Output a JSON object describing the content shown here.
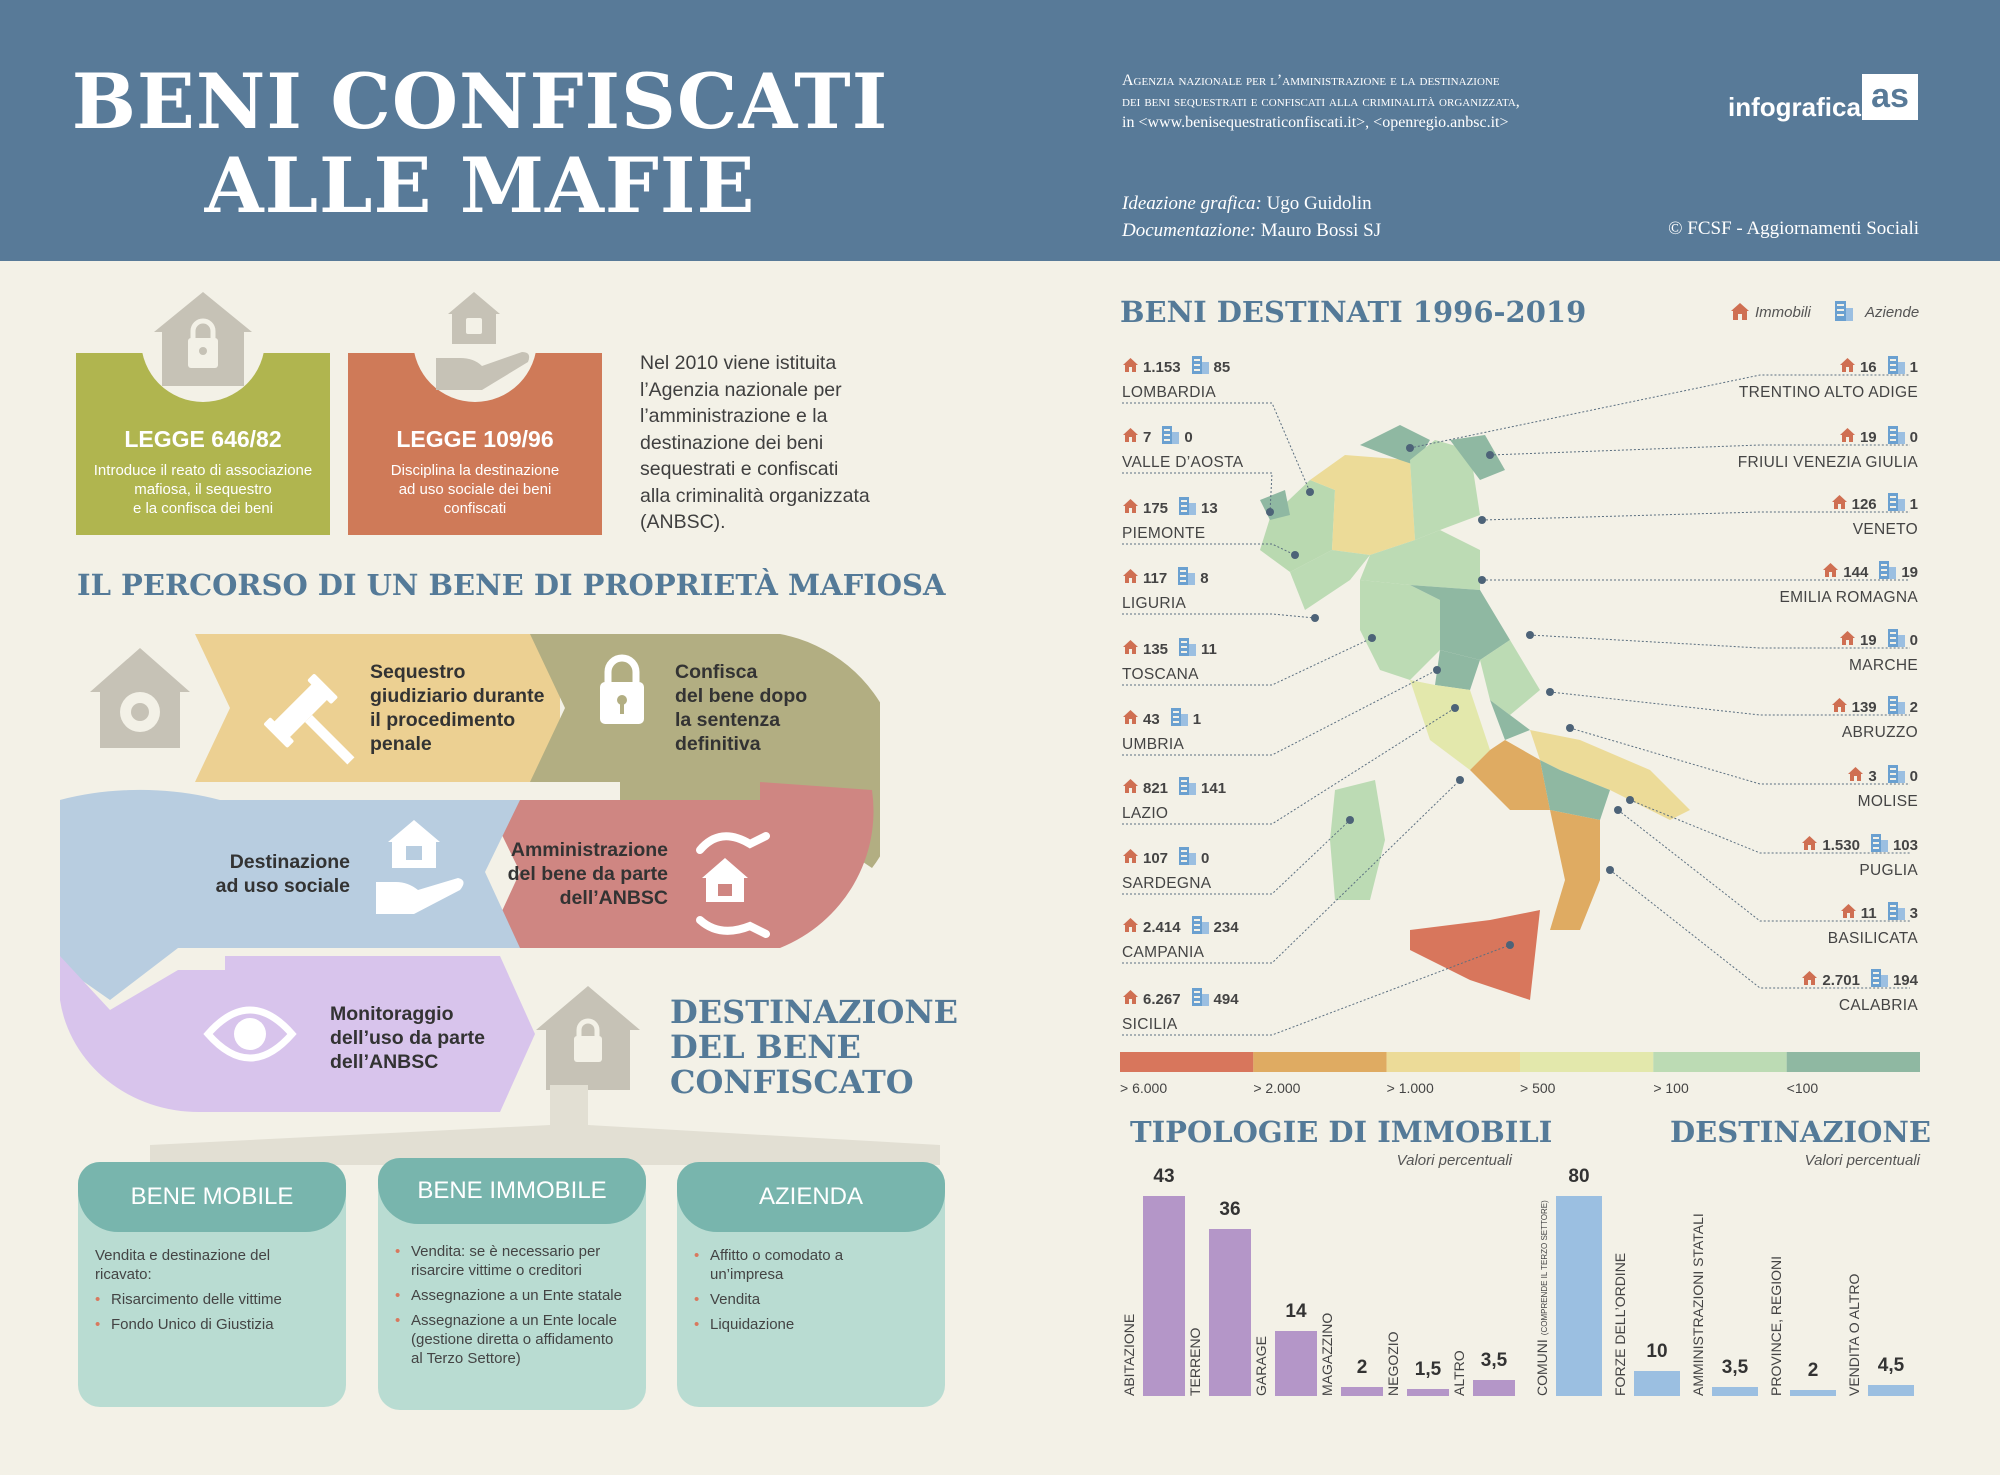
{
  "header": {
    "title_line1": "BENI CONFISCATI",
    "title_line2": "ALLE MAFIE",
    "source_line1": "Agenzia nazionale per l’amministrazione e la destinazione",
    "source_line2": "dei beni sequestrati e confiscati alla criminalità organizzata,",
    "source_line3": "in <www.benisequestraticonfiscati.it>, <openregio.anbsc.it>",
    "ideazione_label": "Ideazione grafica:",
    "ideazione_name": "Ugo Guidolin",
    "documentazione_label": "Documentazione:",
    "documentazione_name": "Mauro Bossi  SJ",
    "copyright": "© FCSF - Aggiornamenti Sociali",
    "brand": "infografica",
    "brand_mark": "as"
  },
  "laws": [
    {
      "title": "LEGGE 646/82",
      "desc": [
        "Introduce il reato di associazione",
        "mafiosa, il sequestro",
        "e la confisca dei beni"
      ],
      "color": "#b0b54f",
      "icon": "house-lock-icon"
    },
    {
      "title": "LEGGE 109/96",
      "desc": [
        "Disciplina la destinazione",
        "ad uso sociale dei beni",
        "confiscati"
      ],
      "color": "#cf7a58",
      "icon": "hand-house-icon"
    }
  ],
  "intro": [
    "Nel 2010 viene istituita",
    "l’Agenzia nazionale per",
    "l’amministrazione e la",
    "destinazione dei beni",
    "sequestrati e confiscati",
    "alla criminalità organizzata",
    "(ANBSC)."
  ],
  "percorso": {
    "title": "IL PERCORSO DI UN BENE DI PROPRIETÀ MAFIOSA",
    "steps": [
      {
        "text": [
          "Sequestro",
          "giudiziario durante",
          "il procedimento",
          "penale"
        ],
        "color": "#ecd092",
        "icon": "gavel-icon"
      },
      {
        "text": [
          "Confisca",
          "del bene dopo",
          "la sentenza",
          "definitiva"
        ],
        "color": "#b2ae82",
        "icon": "lock-icon"
      },
      {
        "text": [
          "Amministrazione",
          "del bene da parte",
          "dell’ANBSC"
        ],
        "color": "#cf8682",
        "icon": "hands-house-icon"
      },
      {
        "text": [
          "Destinazione",
          "ad uso sociale"
        ],
        "color": "#b8cde0",
        "icon": "hand-house-icon"
      },
      {
        "text": [
          "Monitoraggio",
          "dell’uso da parte",
          "dell’ANBSC"
        ],
        "color": "#d8c4ec",
        "icon": "eye-icon"
      }
    ]
  },
  "destinazione_bene": {
    "title": [
      "DESTINAZIONE",
      "DEL BENE",
      "CONFISCATO"
    ],
    "cards": [
      {
        "head": "BENE MOBILE",
        "intro": [
          "Vendita e destinazione del",
          "ricavato:"
        ],
        "items": [
          [
            "Risarcimento delle vittime"
          ],
          [
            "Fondo Unico di Giustizia"
          ]
        ]
      },
      {
        "head": "BENE IMMOBILE",
        "intro": [],
        "items": [
          [
            "Vendita: se è necessario per",
            "risarcire vittime o creditori"
          ],
          [
            "Assegnazione a un Ente statale"
          ],
          [
            "Assegnazione a un Ente locale",
            "(gestione diretta o affidamento",
            "al Terzo Settore)"
          ]
        ]
      },
      {
        "head": "AZIENDA",
        "intro": [],
        "items": [
          [
            "Affitto o comodato a",
            "un’impresa"
          ],
          [
            "Vendita"
          ],
          [
            "Liquidazione"
          ]
        ]
      }
    ]
  },
  "map": {
    "title": "BENI DESTINATI 1996-2019",
    "legend_immobili": "Immobili",
    "legend_aziende": "Aziende",
    "regions_left": [
      {
        "name": "LOMBARDIA",
        "immobili": "1.153",
        "aziende": "85"
      },
      {
        "name": "VALLE D’AOSTA",
        "immobili": "7",
        "aziende": "0"
      },
      {
        "name": "PIEMONTE",
        "immobili": "175",
        "aziende": "13"
      },
      {
        "name": "LIGURIA",
        "immobili": "117",
        "aziende": "8"
      },
      {
        "name": "TOSCANA",
        "immobili": "135",
        "aziende": "11"
      },
      {
        "name": "UMBRIA",
        "immobili": "43",
        "aziende": "1"
      },
      {
        "name": "LAZIO",
        "immobili": "821",
        "aziende": "141"
      },
      {
        "name": "SARDEGNA",
        "immobili": "107",
        "aziende": "0"
      },
      {
        "name": "CAMPANIA",
        "immobili": "2.414",
        "aziende": "234"
      },
      {
        "name": "SICILIA",
        "immobili": "6.267",
        "aziende": "494"
      }
    ],
    "regions_right": [
      {
        "name": "TRENTINO ALTO ADIGE",
        "immobili": "16",
        "aziende": "1"
      },
      {
        "name": "FRIULI VENEZIA GIULIA",
        "immobili": "19",
        "aziende": "0"
      },
      {
        "name": "VENETO",
        "immobili": "126",
        "aziende": "1"
      },
      {
        "name": "EMILIA ROMAGNA",
        "immobili": "144",
        "aziende": "19"
      },
      {
        "name": "MARCHE",
        "immobili": "19",
        "aziende": "0"
      },
      {
        "name": "ABRUZZO",
        "immobili": "139",
        "aziende": "2"
      },
      {
        "name": "MOLISE",
        "immobili": "3",
        "aziende": "0"
      },
      {
        "name": "PUGLIA",
        "immobili": "1.530",
        "aziende": "103"
      },
      {
        "name": "BASILICATA",
        "immobili": "11",
        "aziende": "3"
      },
      {
        "name": "CALABRIA",
        "immobili": "2.701",
        "aziende": "194"
      }
    ],
    "scale": [
      {
        "label": "> 6.000",
        "color": "#d8765c"
      },
      {
        "label": "> 2.000",
        "color": "#dfab62"
      },
      {
        "label": "> 1.000",
        "color": "#ecdb98"
      },
      {
        "label": "> 500",
        "color": "#e3e8ac"
      },
      {
        "label": "> 100",
        "color": "#bcdbb4"
      },
      {
        "label": "<100",
        "color": "#8fb8a2"
      }
    ]
  },
  "chart_data": [
    {
      "type": "bar",
      "title": "TIPOLOGIE DI IMMOBILI",
      "subtitle": "Valori percentuali",
      "categories": [
        "ABITAZIONE",
        "TERRENO",
        "GARAGE",
        "MAGAZZINO",
        "NEGOZIO",
        "ALTRO"
      ],
      "values": [
        43,
        36,
        14,
        2,
        1.5,
        3.5
      ],
      "value_labels": [
        "43",
        "36",
        "14",
        "2",
        "1,5",
        "3,5"
      ],
      "color": "#b496c8"
    },
    {
      "type": "bar",
      "title": "DESTINAZIONE",
      "subtitle": "Valori percentuali",
      "categories": [
        "COMUNI",
        "FORZE DELL’ORDINE",
        "AMMINISTRAZIONI STATALI",
        "PROVINCE, REGIONI",
        "VENDITA O ALTRO"
      ],
      "category_notes": [
        "(COMPRENDE IL TERZO SETTORE)",
        "",
        "",
        "",
        ""
      ],
      "values": [
        80,
        10,
        3.5,
        2,
        4.5
      ],
      "value_labels": [
        "80",
        "10",
        "3,5",
        "2",
        "4,5"
      ],
      "color": "#9bbfe1"
    }
  ]
}
